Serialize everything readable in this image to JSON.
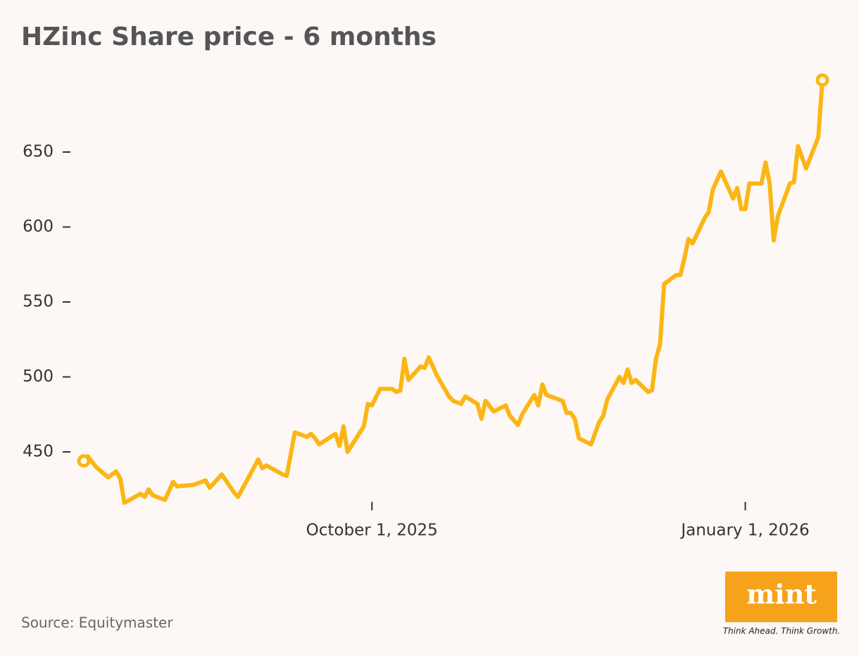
{
  "chart_data": {
    "type": "line",
    "title": "HZinc Share price - 6 months",
    "source": "Source: Equitymaster",
    "brand": {
      "logo": "mint",
      "tagline": "Think Ahead. Think Growth."
    },
    "x": [
      "2025-07-22",
      "2025-07-23",
      "2025-07-25",
      "2025-07-28",
      "2025-07-30",
      "2025-07-31",
      "2025-08-01",
      "2025-08-05",
      "2025-08-06",
      "2025-08-07",
      "2025-08-08",
      "2025-08-11",
      "2025-08-13",
      "2025-08-14",
      "2025-08-18",
      "2025-08-21",
      "2025-08-22",
      "2025-08-25",
      "2025-08-28",
      "2025-08-29",
      "2025-09-02",
      "2025-09-03",
      "2025-09-04",
      "2025-09-05",
      "2025-09-09",
      "2025-09-10",
      "2025-09-12",
      "2025-09-15",
      "2025-09-16",
      "2025-09-17",
      "2025-09-18",
      "2025-09-22",
      "2025-09-23",
      "2025-09-24",
      "2025-09-25",
      "2025-09-29",
      "2025-09-30",
      "2025-10-01",
      "2025-10-03",
      "2025-10-06",
      "2025-10-07",
      "2025-10-08",
      "2025-10-09",
      "2025-10-10",
      "2025-10-13",
      "2025-10-14",
      "2025-10-15",
      "2025-10-17",
      "2025-10-20",
      "2025-10-21",
      "2025-10-23",
      "2025-10-24",
      "2025-10-27",
      "2025-10-28",
      "2025-10-29",
      "2025-10-31",
      "2025-11-03",
      "2025-11-04",
      "2025-11-06",
      "2025-11-07",
      "2025-11-10",
      "2025-11-11",
      "2025-11-12",
      "2025-11-13",
      "2025-11-17",
      "2025-11-18",
      "2025-11-19",
      "2025-11-20",
      "2025-11-21",
      "2025-11-24",
      "2025-11-26",
      "2025-11-27",
      "2025-11-28",
      "2025-12-01",
      "2025-12-02",
      "2025-12-03",
      "2025-12-04",
      "2025-12-05",
      "2025-12-08",
      "2025-12-09",
      "2025-12-10",
      "2025-12-11",
      "2025-12-12",
      "2025-12-15",
      "2025-12-16",
      "2025-12-17",
      "2025-12-18",
      "2025-12-19",
      "2025-12-22",
      "2025-12-23",
      "2025-12-24",
      "2025-12-26",
      "2025-12-29",
      "2025-12-30",
      "2025-12-31",
      "2026-01-01",
      "2026-01-02",
      "2026-01-05",
      "2026-01-06",
      "2026-01-07",
      "2026-01-08",
      "2026-01-09",
      "2026-01-12",
      "2026-01-13",
      "2026-01-14",
      "2026-01-16",
      "2026-01-19",
      "2026-01-20"
    ],
    "series": [
      {
        "name": "HZinc",
        "color": "#fbb615",
        "values": [
          444,
          447,
          440,
          433,
          437,
          432,
          416,
          422,
          420,
          425,
          421,
          418,
          430,
          427,
          428,
          431,
          426,
          435,
          423,
          420,
          440,
          445,
          439,
          441,
          435,
          434,
          463,
          460,
          462,
          459,
          455,
          462,
          454,
          467,
          450,
          467,
          482,
          481,
          492,
          492,
          490,
          491,
          512,
          498,
          507,
          506,
          513,
          501,
          487,
          484,
          482,
          487,
          482,
          472,
          484,
          477,
          481,
          474,
          468,
          475,
          488,
          481,
          495,
          488,
          484,
          476,
          476,
          472,
          459,
          455,
          470,
          474,
          485,
          500,
          496,
          505,
          496,
          498,
          490,
          491,
          512,
          522,
          562,
          568,
          568,
          579,
          592,
          589,
          606,
          610,
          625,
          637,
          619,
          626,
          612,
          612,
          629,
          629,
          643,
          629,
          591,
          607,
          629,
          630,
          654,
          639,
          660,
          698
        ]
      }
    ],
    "xlim": [
      "2025-07-22",
      "2026-01-20"
    ],
    "xticks": [
      {
        "value": "2025-10-01",
        "label": "October 1, 2025"
      },
      {
        "value": "2026-01-01",
        "label": "January 1, 2026"
      }
    ],
    "ylim": [
      410,
      700
    ],
    "yticks": [
      450,
      500,
      550,
      600,
      650
    ],
    "grid": false
  }
}
